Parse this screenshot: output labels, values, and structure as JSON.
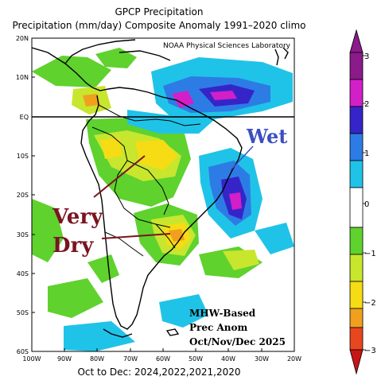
{
  "title_line1": "GPCP Precipitation",
  "title_line2": "Precipitation (mm/day) Composite Anomaly 1991–2020 climo",
  "credit": "NOAA Physical Sciences Laboratory",
  "subcaption": "Oct to Dec: 2024,2022,2021,2020",
  "y_ticks": [
    "20N",
    "10N",
    "EQ",
    "10S",
    "20S",
    "30S",
    "40S",
    "50S",
    "60S"
  ],
  "x_ticks": [
    "100W",
    "90W",
    "80W",
    "70W",
    "60W",
    "50W",
    "40W",
    "30W",
    "20W"
  ],
  "annotations": {
    "wet": "Wet",
    "very": "Very",
    "dry": "Dry",
    "mhw_line1": "MHW-Based",
    "mhw_line2": "Prec Anom",
    "mhw_line3": "Oct/Nov/Dec 2025"
  },
  "colorbar": {
    "labels": [
      "3",
      "2",
      "1",
      "0",
      "−1",
      "−2",
      "−3"
    ],
    "colors": {
      "magenta_dark": "#8B1A8B",
      "magenta": "#D21FC8",
      "blue_dark": "#3525C8",
      "blue": "#2D7CE6",
      "cyan": "#20C3E8",
      "white": "#FFFFFF",
      "green": "#5FD22D",
      "yellow_green": "#C8E62D",
      "yellow": "#F5DC14",
      "orange": "#F0A01E",
      "red_orange": "#E8461E",
      "red": "#C81414"
    }
  },
  "colors": {
    "very_dry": "#7A1420",
    "wet": "#3B4FC0",
    "arrow": "#7A1420"
  }
}
